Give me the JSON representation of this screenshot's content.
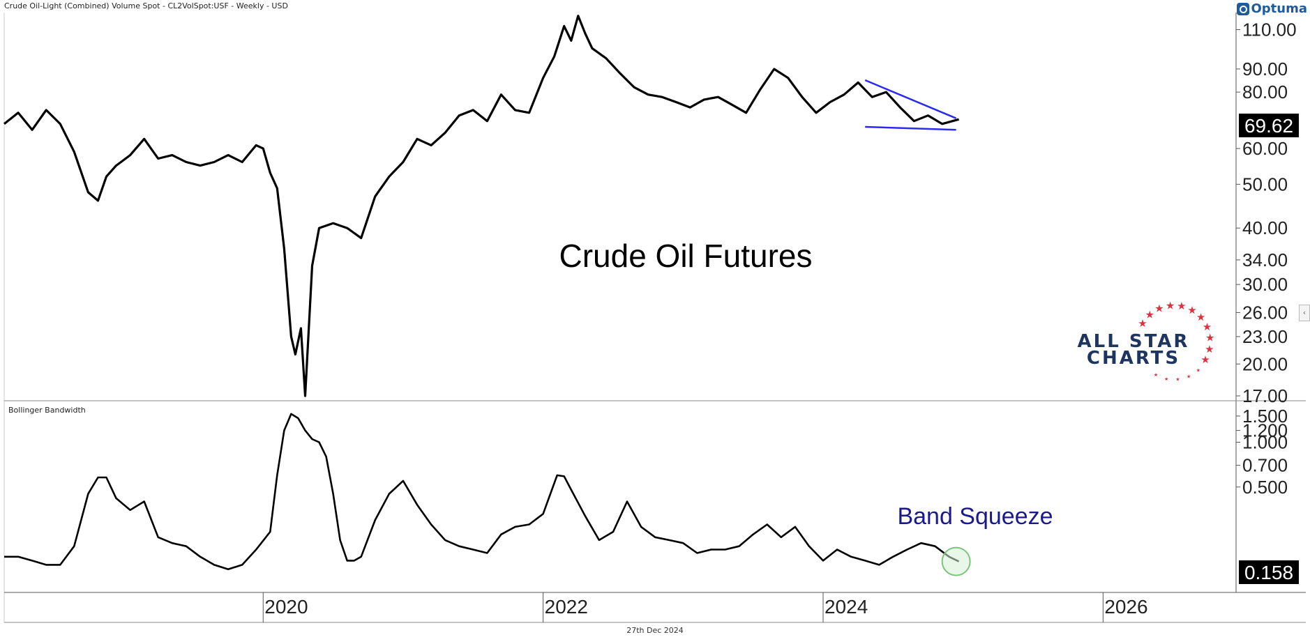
{
  "header": {
    "title": "Crude Oil-Light (Combined) Volume Spot - CL2VolSpot:USF - Weekly - USD",
    "brand": "Optuma"
  },
  "watermark": {
    "line1": "ALL STAR",
    "line2": "CHARTS",
    "colors": {
      "text": "#1e3560",
      "stars": "#e03040"
    }
  },
  "footer": {
    "date": "27th Dec 2024"
  },
  "colors": {
    "price_line": "#000000",
    "trendline": "#2b2bf0",
    "annotation": "#1a1a8c",
    "circle": "#7cc47c",
    "circle_fill": "#d6f0d6"
  },
  "chart_data": [
    {
      "id": "price",
      "type": "line",
      "title": "Crude Oil Futures",
      "scale": "log",
      "ylim": [
        17,
        120
      ],
      "yticks": [
        17,
        20,
        23,
        26,
        30,
        34,
        40,
        50,
        60,
        80,
        90,
        110
      ],
      "ytick_labels": [
        "17.00",
        "20.00",
        "23.00",
        "26.00",
        "30.00",
        "34.00",
        "40.00",
        "50.00",
        "60.00",
        "80.00",
        "90.00",
        "110.00"
      ],
      "x_ticks": [
        2020,
        2022,
        2024,
        2026
      ],
      "xlim": [
        2018.15,
        2026.95
      ],
      "last_value_label": "69.62",
      "series": [
        {
          "x": [
            2018.15,
            2018.25,
            2018.35,
            2018.45,
            2018.55,
            2018.65,
            2018.75,
            2018.82,
            2018.88,
            2018.95,
            2019.05,
            2019.15,
            2019.25,
            2019.35,
            2019.45,
            2019.55,
            2019.65,
            2019.75,
            2019.85,
            2019.95,
            2020.0,
            2020.05,
            2020.1,
            2020.15,
            2020.2,
            2020.23,
            2020.27,
            2020.3,
            2020.35,
            2020.4,
            2020.5,
            2020.6,
            2020.7,
            2020.8,
            2020.9,
            2021.0,
            2021.1,
            2021.2,
            2021.3,
            2021.4,
            2021.5,
            2021.6,
            2021.7,
            2021.8,
            2021.9,
            2022.0,
            2022.08,
            2022.15,
            2022.2,
            2022.25,
            2022.3,
            2022.35,
            2022.45,
            2022.55,
            2022.65,
            2022.75,
            2022.85,
            2022.95,
            2023.05,
            2023.15,
            2023.25,
            2023.35,
            2023.45,
            2023.55,
            2023.65,
            2023.75,
            2023.85,
            2023.95,
            2024.05,
            2024.15,
            2024.25,
            2024.35,
            2024.45,
            2024.55,
            2024.65,
            2024.75,
            2024.85,
            2024.97
          ],
          "values": [
            68,
            72,
            66,
            73,
            68,
            59,
            48,
            46,
            52,
            55,
            58,
            63,
            57,
            58,
            56,
            55,
            56,
            58,
            56,
            61,
            60,
            53,
            49,
            36,
            23,
            21,
            24,
            17,
            33,
            40,
            41,
            40,
            38,
            47,
            52,
            56,
            63,
            61,
            65,
            71,
            73,
            69,
            79,
            73,
            72,
            86,
            96,
            112,
            104,
            118,
            108,
            100,
            95,
            88,
            82,
            79,
            78,
            76,
            74,
            77,
            78,
            75,
            72,
            81,
            90,
            86,
            78,
            72,
            76,
            79,
            84,
            78,
            80,
            74,
            69,
            71,
            68,
            69.62
          ]
        }
      ],
      "trendlines": [
        {
          "x": [
            2024.3,
            2024.95
          ],
          "values": [
            85,
            70
          ]
        },
        {
          "x": [
            2024.3,
            2024.95
          ],
          "values": [
            67,
            66
          ]
        }
      ]
    },
    {
      "id": "bandwidth",
      "type": "line",
      "title": "Bollinger Bandwidth",
      "scale": "log",
      "ylim": [
        0.1,
        1.8
      ],
      "yticks": [
        0.5,
        0.7,
        1.0,
        1.2,
        1.5
      ],
      "ytick_labels": [
        "0.500",
        "0.700",
        "1.000",
        "1.200",
        "1.500"
      ],
      "x_ticks": [
        2020,
        2022,
        2024,
        2026
      ],
      "xtick_labels": [
        "2020",
        "2022",
        "2024",
        "2026"
      ],
      "xlim": [
        2018.15,
        2026.95
      ],
      "last_value_label": "0.158",
      "annotation": "Band Squeeze",
      "series": [
        {
          "x": [
            2018.15,
            2018.25,
            2018.35,
            2018.45,
            2018.55,
            2018.65,
            2018.75,
            2018.82,
            2018.88,
            2018.95,
            2019.05,
            2019.15,
            2019.25,
            2019.35,
            2019.45,
            2019.55,
            2019.65,
            2019.75,
            2019.85,
            2019.95,
            2020.05,
            2020.1,
            2020.15,
            2020.2,
            2020.25,
            2020.3,
            2020.35,
            2020.4,
            2020.45,
            2020.5,
            2020.55,
            2020.6,
            2020.65,
            2020.7,
            2020.8,
            2020.9,
            2021.0,
            2021.1,
            2021.2,
            2021.3,
            2021.4,
            2021.5,
            2021.6,
            2021.7,
            2021.8,
            2021.9,
            2022.0,
            2022.1,
            2022.15,
            2022.2,
            2022.3,
            2022.4,
            2022.5,
            2022.6,
            2022.7,
            2022.8,
            2022.9,
            2023.0,
            2023.1,
            2023.2,
            2023.3,
            2023.4,
            2023.5,
            2023.6,
            2023.7,
            2023.8,
            2023.9,
            2024.0,
            2024.1,
            2024.2,
            2024.3,
            2024.4,
            2024.5,
            2024.6,
            2024.7,
            2024.8,
            2024.9,
            2024.97
          ],
          "values": [
            0.17,
            0.17,
            0.16,
            0.15,
            0.15,
            0.2,
            0.45,
            0.58,
            0.58,
            0.42,
            0.35,
            0.4,
            0.23,
            0.21,
            0.2,
            0.17,
            0.15,
            0.14,
            0.15,
            0.19,
            0.25,
            0.6,
            1.2,
            1.55,
            1.45,
            1.2,
            1.05,
            1.0,
            0.8,
            0.45,
            0.22,
            0.16,
            0.16,
            0.17,
            0.3,
            0.45,
            0.55,
            0.38,
            0.28,
            0.22,
            0.2,
            0.19,
            0.18,
            0.24,
            0.27,
            0.28,
            0.33,
            0.6,
            0.59,
            0.48,
            0.32,
            0.22,
            0.25,
            0.4,
            0.27,
            0.23,
            0.22,
            0.21,
            0.18,
            0.19,
            0.19,
            0.2,
            0.24,
            0.28,
            0.23,
            0.27,
            0.2,
            0.16,
            0.19,
            0.17,
            0.16,
            0.15,
            0.17,
            0.19,
            0.21,
            0.2,
            0.17,
            0.158
          ]
        }
      ]
    }
  ]
}
